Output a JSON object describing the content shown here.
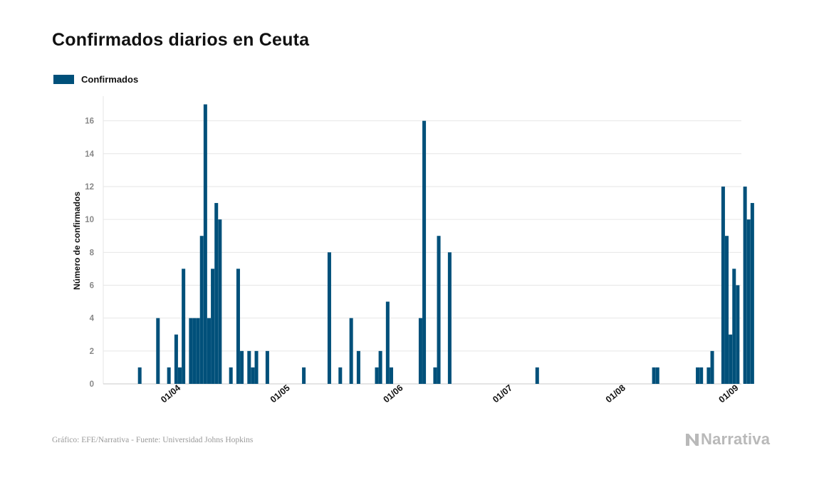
{
  "title": "Confirmados diarios en Ceuta",
  "legend": {
    "label": "Confirmados"
  },
  "source": "Gráfico: EFE/Narrativa - Fuente: Universidad Johns Hopkins",
  "brand": "Narrativa",
  "colors": {
    "bar": "#00507a",
    "grid": "#e6e6e6",
    "tick": "#888888",
    "axis": "#c9c9c9"
  },
  "chart_data": {
    "type": "bar",
    "title": "Confirmados diarios en Ceuta",
    "ylabel": "Número de confirmados",
    "xlabel": "",
    "ylim": [
      0,
      17.5
    ],
    "yticks": [
      0,
      2,
      4,
      6,
      8,
      10,
      12,
      14,
      16
    ],
    "xlim": [
      "2020-03-13",
      "2020-09-04"
    ],
    "xticks": [
      {
        "date": "2020-04-01",
        "label": "01/04"
      },
      {
        "date": "2020-05-01",
        "label": "01/05"
      },
      {
        "date": "2020-06-01",
        "label": "01/06"
      },
      {
        "date": "2020-07-01",
        "label": "01/07"
      },
      {
        "date": "2020-08-01",
        "label": "01/08"
      },
      {
        "date": "2020-09-01",
        "label": "01/09"
      }
    ],
    "grid": true,
    "legend_position": "top-left",
    "series": [
      {
        "name": "Confirmados",
        "points": [
          [
            "2020-03-23",
            1
          ],
          [
            "2020-03-28",
            4
          ],
          [
            "2020-03-31",
            1
          ],
          [
            "2020-04-02",
            3
          ],
          [
            "2020-04-03",
            1
          ],
          [
            "2020-04-04",
            7
          ],
          [
            "2020-04-06",
            4
          ],
          [
            "2020-04-07",
            4
          ],
          [
            "2020-04-08",
            4
          ],
          [
            "2020-04-09",
            9
          ],
          [
            "2020-04-10",
            17
          ],
          [
            "2020-04-11",
            4
          ],
          [
            "2020-04-12",
            7
          ],
          [
            "2020-04-13",
            11
          ],
          [
            "2020-04-14",
            10
          ],
          [
            "2020-04-17",
            1
          ],
          [
            "2020-04-19",
            7
          ],
          [
            "2020-04-20",
            2
          ],
          [
            "2020-04-22",
            2
          ],
          [
            "2020-04-23",
            1
          ],
          [
            "2020-04-24",
            2
          ],
          [
            "2020-04-27",
            2
          ],
          [
            "2020-05-07",
            1
          ],
          [
            "2020-05-14",
            8
          ],
          [
            "2020-05-17",
            1
          ],
          [
            "2020-05-20",
            4
          ],
          [
            "2020-05-22",
            2
          ],
          [
            "2020-05-27",
            1
          ],
          [
            "2020-05-28",
            2
          ],
          [
            "2020-05-30",
            5
          ],
          [
            "2020-05-31",
            1
          ],
          [
            "2020-06-08",
            4
          ],
          [
            "2020-06-09",
            16
          ],
          [
            "2020-06-12",
            1
          ],
          [
            "2020-06-13",
            9
          ],
          [
            "2020-06-16",
            8
          ],
          [
            "2020-07-10",
            1
          ],
          [
            "2020-08-11",
            1
          ],
          [
            "2020-08-12",
            1
          ],
          [
            "2020-08-23",
            1
          ],
          [
            "2020-08-24",
            1
          ],
          [
            "2020-08-26",
            1
          ],
          [
            "2020-08-27",
            2
          ],
          [
            "2020-08-30",
            12
          ],
          [
            "2020-08-31",
            9
          ],
          [
            "2020-09-01",
            3
          ],
          [
            "2020-09-02",
            7
          ],
          [
            "2020-09-03",
            6
          ],
          [
            "2020-09-05",
            12
          ],
          [
            "2020-09-06",
            10
          ],
          [
            "2020-09-07",
            11
          ]
        ]
      }
    ]
  }
}
